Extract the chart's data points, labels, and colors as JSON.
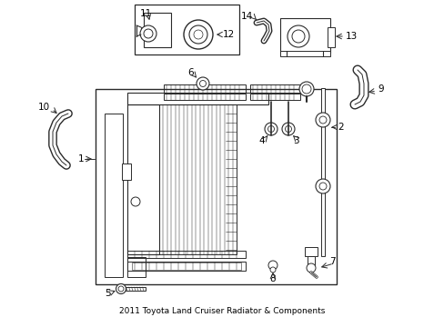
{
  "title": "2011 Toyota Land Cruiser Radiator & Components",
  "bg_color": "#ffffff",
  "line_color": "#2a2a2a",
  "label_color": "#000000",
  "font_size": 7.5,
  "title_font_size": 6.5
}
